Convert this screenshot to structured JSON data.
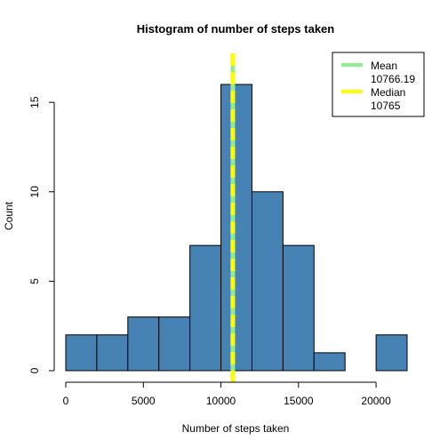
{
  "chart_data": {
    "type": "bar",
    "title": "Histogram of number of steps taken",
    "xlabel": "Number of steps taken",
    "ylabel": "Count",
    "bin_edges": [
      0,
      2000,
      4000,
      6000,
      8000,
      10000,
      12000,
      14000,
      16000,
      18000,
      20000,
      22000
    ],
    "counts": [
      2,
      2,
      3,
      3,
      7,
      16,
      10,
      7,
      1,
      0,
      2
    ],
    "xlim": [
      0,
      22000
    ],
    "ylim": [
      0,
      16
    ],
    "x_ticks": [
      0,
      5000,
      10000,
      15000,
      20000
    ],
    "x_tick_labels": [
      "0",
      "5000",
      "10000",
      "15000",
      "20000"
    ],
    "y_ticks": [
      0,
      5,
      10,
      15
    ],
    "y_tick_labels": [
      "0",
      "5",
      "10",
      "15"
    ],
    "bar_color": "#4682b4",
    "grid": false,
    "reference_lines": [
      {
        "value": 10766.19,
        "color": "#90ee90",
        "style": "solid"
      },
      {
        "value": 10765,
        "color": "#ffff00",
        "style": "dashed"
      }
    ],
    "legend": {
      "position": "top-right",
      "entries": [
        {
          "line1": "Mean",
          "line2": "10766.19",
          "color": "#90ee90"
        },
        {
          "line1": "Median",
          "line2": "10765",
          "color": "#ffff00"
        }
      ]
    }
  }
}
